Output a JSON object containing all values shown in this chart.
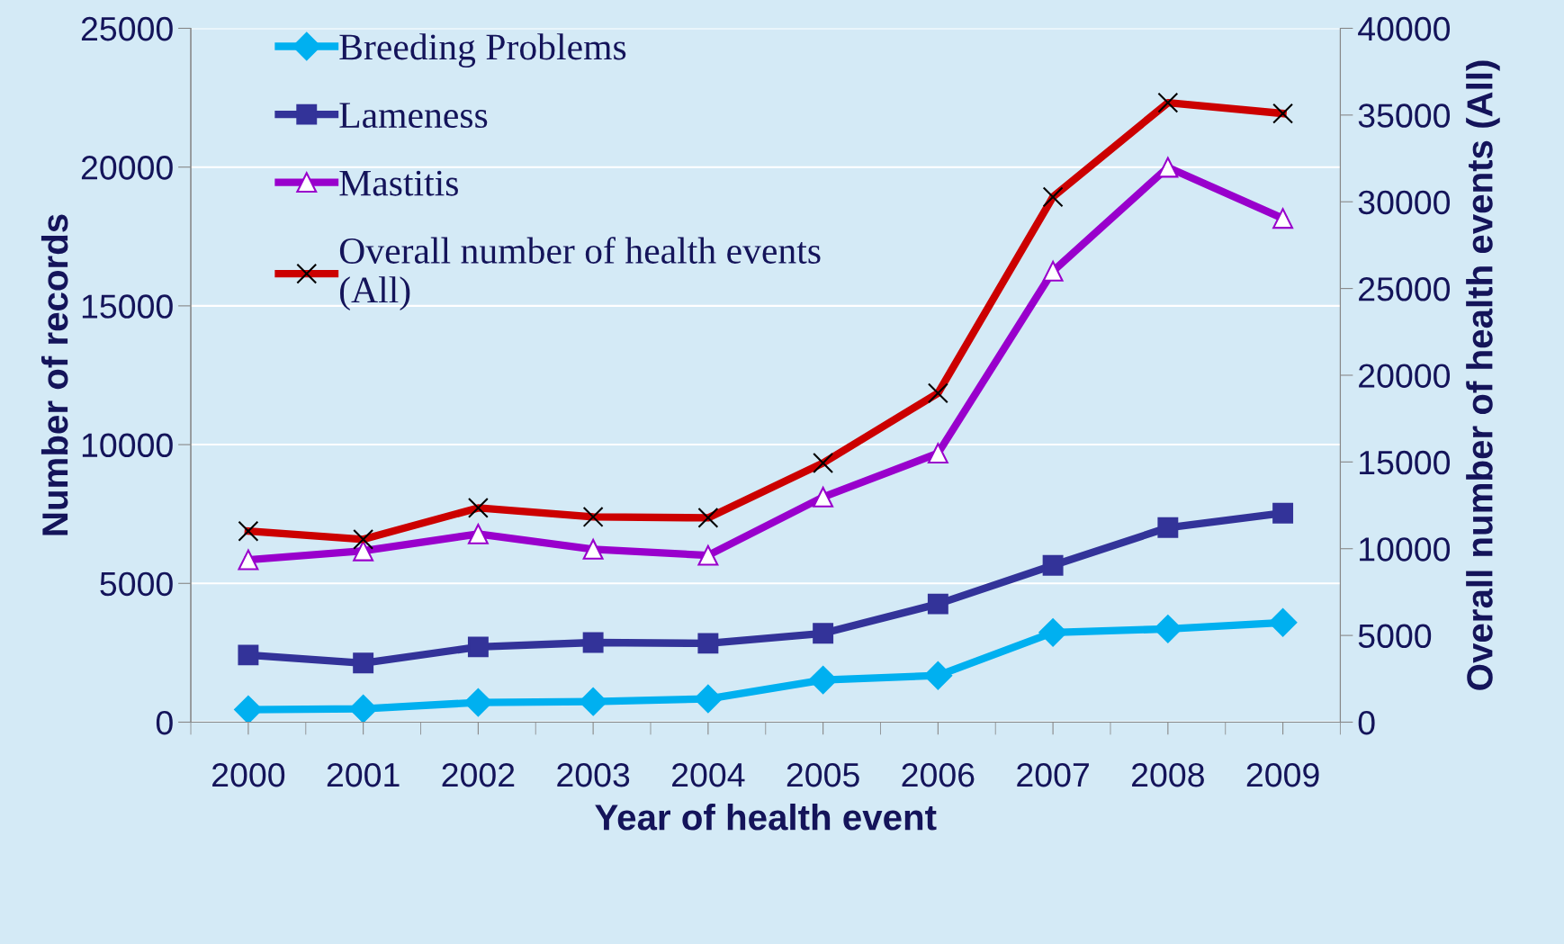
{
  "chart_data": {
    "type": "line",
    "xlabel": "Year of health event",
    "ylabel": "Number of records",
    "y2label": "Overall number of health events (All)",
    "categories": [
      "2000",
      "2001",
      "2002",
      "2003",
      "2004",
      "2005",
      "2006",
      "2007",
      "2008",
      "2009"
    ],
    "series": [
      {
        "name": "Breeding Problems",
        "color": "#00b0f0",
        "marker": "diamond",
        "values": [
          450,
          480,
          710,
          740,
          840,
          1520,
          1680,
          3230,
          3360,
          3590
        ]
      },
      {
        "name": "Lameness",
        "color": "#333399",
        "marker": "square",
        "values": [
          2420,
          2130,
          2710,
          2870,
          2840,
          3200,
          4260,
          5650,
          7010,
          7530
        ]
      },
      {
        "name": "Mastitis",
        "color": "#9900cc",
        "marker": "triangle",
        "values": [
          5850,
          6170,
          6780,
          6230,
          6010,
          8110,
          9690,
          16250,
          19990,
          18150
        ]
      },
      {
        "name": "Overall number of health events\n(All)",
        "color": "#cc0000",
        "marker": "cross",
        "axis": "y2",
        "values": [
          11010,
          10540,
          12350,
          11830,
          11780,
          14940,
          18970,
          30280,
          35710,
          35090
        ]
      }
    ],
    "ylim": [
      0,
      25000
    ],
    "yticks": [
      0,
      5000,
      10000,
      15000,
      20000,
      25000
    ],
    "y2lim": [
      0,
      40000
    ],
    "y2ticks": [
      0,
      5000,
      10000,
      15000,
      20000,
      25000,
      30000,
      35000,
      40000
    ],
    "grid": "y",
    "legend": "top left",
    "line_style": "solid"
  }
}
